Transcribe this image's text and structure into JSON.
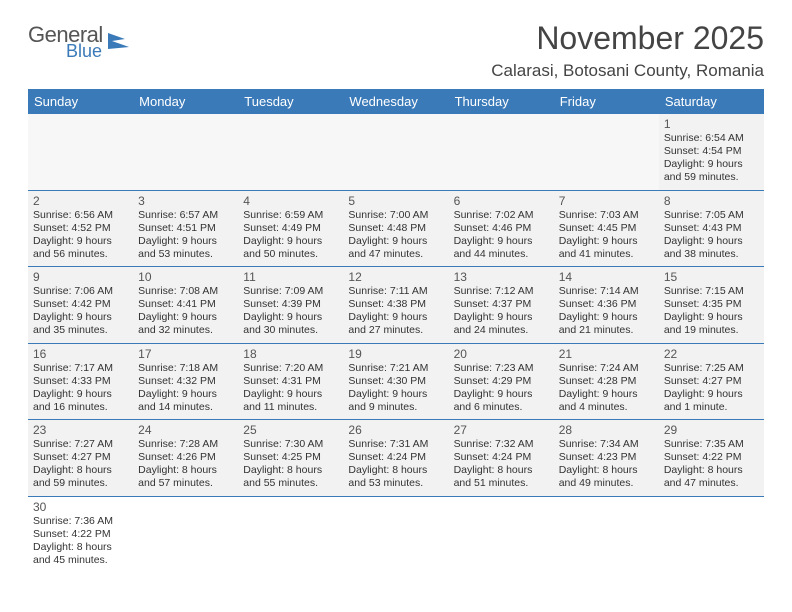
{
  "logo": {
    "text1": "General",
    "text2": "Blue"
  },
  "title": "November 2025",
  "location": "Calarasi, Botosani County, Romania",
  "colors": {
    "header_bg": "#3a7ab8",
    "header_text": "#ffffff",
    "cell_bg": "#f2f2f2",
    "empty_bg": "#f7f7f7",
    "border": "#3a7ab8",
    "text": "#333333",
    "title_text": "#444444"
  },
  "days_of_week": [
    "Sunday",
    "Monday",
    "Tuesday",
    "Wednesday",
    "Thursday",
    "Friday",
    "Saturday"
  ],
  "weeks": [
    [
      null,
      null,
      null,
      null,
      null,
      null,
      {
        "n": "1",
        "sunrise": "Sunrise: 6:54 AM",
        "sunset": "Sunset: 4:54 PM",
        "daylight": "Daylight: 9 hours and 59 minutes."
      }
    ],
    [
      {
        "n": "2",
        "sunrise": "Sunrise: 6:56 AM",
        "sunset": "Sunset: 4:52 PM",
        "daylight": "Daylight: 9 hours and 56 minutes."
      },
      {
        "n": "3",
        "sunrise": "Sunrise: 6:57 AM",
        "sunset": "Sunset: 4:51 PM",
        "daylight": "Daylight: 9 hours and 53 minutes."
      },
      {
        "n": "4",
        "sunrise": "Sunrise: 6:59 AM",
        "sunset": "Sunset: 4:49 PM",
        "daylight": "Daylight: 9 hours and 50 minutes."
      },
      {
        "n": "5",
        "sunrise": "Sunrise: 7:00 AM",
        "sunset": "Sunset: 4:48 PM",
        "daylight": "Daylight: 9 hours and 47 minutes."
      },
      {
        "n": "6",
        "sunrise": "Sunrise: 7:02 AM",
        "sunset": "Sunset: 4:46 PM",
        "daylight": "Daylight: 9 hours and 44 minutes."
      },
      {
        "n": "7",
        "sunrise": "Sunrise: 7:03 AM",
        "sunset": "Sunset: 4:45 PM",
        "daylight": "Daylight: 9 hours and 41 minutes."
      },
      {
        "n": "8",
        "sunrise": "Sunrise: 7:05 AM",
        "sunset": "Sunset: 4:43 PM",
        "daylight": "Daylight: 9 hours and 38 minutes."
      }
    ],
    [
      {
        "n": "9",
        "sunrise": "Sunrise: 7:06 AM",
        "sunset": "Sunset: 4:42 PM",
        "daylight": "Daylight: 9 hours and 35 minutes."
      },
      {
        "n": "10",
        "sunrise": "Sunrise: 7:08 AM",
        "sunset": "Sunset: 4:41 PM",
        "daylight": "Daylight: 9 hours and 32 minutes."
      },
      {
        "n": "11",
        "sunrise": "Sunrise: 7:09 AM",
        "sunset": "Sunset: 4:39 PM",
        "daylight": "Daylight: 9 hours and 30 minutes."
      },
      {
        "n": "12",
        "sunrise": "Sunrise: 7:11 AM",
        "sunset": "Sunset: 4:38 PM",
        "daylight": "Daylight: 9 hours and 27 minutes."
      },
      {
        "n": "13",
        "sunrise": "Sunrise: 7:12 AM",
        "sunset": "Sunset: 4:37 PM",
        "daylight": "Daylight: 9 hours and 24 minutes."
      },
      {
        "n": "14",
        "sunrise": "Sunrise: 7:14 AM",
        "sunset": "Sunset: 4:36 PM",
        "daylight": "Daylight: 9 hours and 21 minutes."
      },
      {
        "n": "15",
        "sunrise": "Sunrise: 7:15 AM",
        "sunset": "Sunset: 4:35 PM",
        "daylight": "Daylight: 9 hours and 19 minutes."
      }
    ],
    [
      {
        "n": "16",
        "sunrise": "Sunrise: 7:17 AM",
        "sunset": "Sunset: 4:33 PM",
        "daylight": "Daylight: 9 hours and 16 minutes."
      },
      {
        "n": "17",
        "sunrise": "Sunrise: 7:18 AM",
        "sunset": "Sunset: 4:32 PM",
        "daylight": "Daylight: 9 hours and 14 minutes."
      },
      {
        "n": "18",
        "sunrise": "Sunrise: 7:20 AM",
        "sunset": "Sunset: 4:31 PM",
        "daylight": "Daylight: 9 hours and 11 minutes."
      },
      {
        "n": "19",
        "sunrise": "Sunrise: 7:21 AM",
        "sunset": "Sunset: 4:30 PM",
        "daylight": "Daylight: 9 hours and 9 minutes."
      },
      {
        "n": "20",
        "sunrise": "Sunrise: 7:23 AM",
        "sunset": "Sunset: 4:29 PM",
        "daylight": "Daylight: 9 hours and 6 minutes."
      },
      {
        "n": "21",
        "sunrise": "Sunrise: 7:24 AM",
        "sunset": "Sunset: 4:28 PM",
        "daylight": "Daylight: 9 hours and 4 minutes."
      },
      {
        "n": "22",
        "sunrise": "Sunrise: 7:25 AM",
        "sunset": "Sunset: 4:27 PM",
        "daylight": "Daylight: 9 hours and 1 minute."
      }
    ],
    [
      {
        "n": "23",
        "sunrise": "Sunrise: 7:27 AM",
        "sunset": "Sunset: 4:27 PM",
        "daylight": "Daylight: 8 hours and 59 minutes."
      },
      {
        "n": "24",
        "sunrise": "Sunrise: 7:28 AM",
        "sunset": "Sunset: 4:26 PM",
        "daylight": "Daylight: 8 hours and 57 minutes."
      },
      {
        "n": "25",
        "sunrise": "Sunrise: 7:30 AM",
        "sunset": "Sunset: 4:25 PM",
        "daylight": "Daylight: 8 hours and 55 minutes."
      },
      {
        "n": "26",
        "sunrise": "Sunrise: 7:31 AM",
        "sunset": "Sunset: 4:24 PM",
        "daylight": "Daylight: 8 hours and 53 minutes."
      },
      {
        "n": "27",
        "sunrise": "Sunrise: 7:32 AM",
        "sunset": "Sunset: 4:24 PM",
        "daylight": "Daylight: 8 hours and 51 minutes."
      },
      {
        "n": "28",
        "sunrise": "Sunrise: 7:34 AM",
        "sunset": "Sunset: 4:23 PM",
        "daylight": "Daylight: 8 hours and 49 minutes."
      },
      {
        "n": "29",
        "sunrise": "Sunrise: 7:35 AM",
        "sunset": "Sunset: 4:22 PM",
        "daylight": "Daylight: 8 hours and 47 minutes."
      }
    ],
    [
      {
        "n": "30",
        "sunrise": "Sunrise: 7:36 AM",
        "sunset": "Sunset: 4:22 PM",
        "daylight": "Daylight: 8 hours and 45 minutes."
      },
      null,
      null,
      null,
      null,
      null,
      null
    ]
  ]
}
